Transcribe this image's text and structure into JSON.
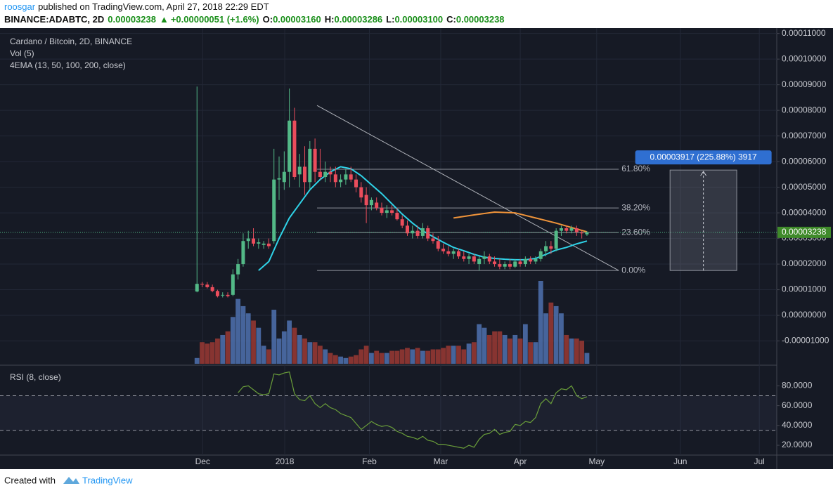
{
  "header": {
    "author": "roosgar",
    "published": "published on TradingView.com, April 27, 2018 22:29 EDT",
    "symbol": "BINANCE:ADABTC, 2D",
    "last": "0.00003238",
    "arrow": "▲",
    "change": "+0.00000051 (+1.6%)",
    "open_label": "O:",
    "open": "0.00003160",
    "high_label": "H:",
    "high": "0.00003286",
    "low_label": "L:",
    "low": "0.00003100",
    "close_label": "C:",
    "close": "0.00003238"
  },
  "chart_data": [
    {
      "type": "candlestick",
      "title": "Cardano / Bitcoin, 2D, BINANCE",
      "volume_title": "Vol (5)",
      "ema_title": "4EMA (13, 50, 100, 200, close)",
      "up_color": "#53b987",
      "down_color": "#eb4d5c",
      "volume_up_color": "#4f72b0",
      "volume_down_color": "#9b3a34",
      "grid": true,
      "candles": [
        [
          9.3e-06,
          8.93e-05,
          9e-06,
          1.23e-05
        ],
        [
          1.23e-05,
          1.3e-05,
          1.1e-05,
          1.2e-05
        ],
        [
          1.2e-05,
          1.3e-05,
          1.05e-05,
          1.1e-05
        ],
        [
          1.1e-05,
          1.2e-05,
          9e-06,
          9.5e-06
        ],
        [
          9.5e-06,
          1e-05,
          7e-06,
          7.5e-06
        ],
        [
          7.8e-06,
          9e-06,
          7e-06,
          8e-06
        ],
        [
          8e-06,
          9e-06,
          7e-06,
          7.5e-06
        ],
        [
          8e-06,
          1.8e-05,
          7.5e-06,
          1.6e-05
        ],
        [
          1.6e-05,
          2.2e-05,
          1.4e-05,
          2e-05
        ],
        [
          2e-05,
          3.2e-05,
          1.9e-05,
          2.9e-05
        ],
        [
          2.9e-05,
          3.3e-05,
          2.6e-05,
          3e-05
        ],
        [
          3e-05,
          3.4e-05,
          2.7e-05,
          2.8e-05
        ],
        [
          2.8e-05,
          3e-05,
          2.6e-05,
          2.85e-05
        ],
        [
          2.75e-05,
          2.9e-05,
          2.6e-05,
          2.8e-05
        ],
        [
          2.8e-05,
          3e-05,
          2.6e-05,
          2.7e-05
        ],
        [
          2.9e-05,
          6.5e-05,
          2.8e-05,
          5.3e-05
        ],
        [
          5.3e-05,
          6.2e-05,
          4.5e-05,
          5.35e-05
        ],
        [
          5.2e-05,
          6.4e-05,
          4.9e-05,
          5.6e-05
        ],
        [
          5.6e-05,
          8.85e-05,
          5e-05,
          7.6e-05
        ],
        [
          7.6e-05,
          8.1e-05,
          5.3e-05,
          5.4e-05
        ],
        [
          5.5e-05,
          6.3e-05,
          5e-05,
          5.8e-05
        ],
        [
          5.8e-05,
          6.6e-05,
          4.7e-05,
          5.2e-05
        ],
        [
          5.2e-05,
          6.8e-05,
          4.9e-05,
          6.5e-05
        ],
        [
          6.5e-05,
          6.9e-05,
          5.2e-05,
          5.6e-05
        ],
        [
          5.6e-05,
          6.5e-05,
          5.3e-05,
          5.4e-05
        ],
        [
          5.4e-05,
          6e-05,
          5.2e-05,
          5.6e-05
        ],
        [
          5.6e-05,
          5.8e-05,
          5.2e-05,
          5.5e-05
        ],
        [
          5.5e-05,
          5.8e-05,
          5e-05,
          5.2e-05
        ],
        [
          5.2e-05,
          5.5e-05,
          5e-05,
          5.3e-05
        ],
        [
          5.3e-05,
          5.7e-05,
          5.1e-05,
          5.5e-05
        ],
        [
          5.5e-05,
          5.8e-05,
          5.2e-05,
          5.3e-05
        ],
        [
          5.3e-05,
          5.5e-05,
          4.8e-05,
          5e-05
        ],
        [
          5e-05,
          5.2e-05,
          4.4e-05,
          4.6e-05
        ],
        [
          4.7e-05,
          5e-05,
          3.6e-05,
          4.3e-05
        ],
        [
          4.3e-05,
          4.6e-05,
          4.1e-05,
          4.5e-05
        ],
        [
          4.4e-05,
          4.6e-05,
          4.1e-05,
          4.2e-05
        ],
        [
          4.2e-05,
          4.4e-05,
          3.9e-05,
          4e-05
        ],
        [
          4e-05,
          4.3e-05,
          3.8e-05,
          4.1e-05
        ],
        [
          4.1e-05,
          4.3e-05,
          3.9e-05,
          4e-05
        ],
        [
          4e-05,
          4.2e-05,
          3.7e-05,
          3.75e-05
        ],
        [
          3.75e-05,
          3.9e-05,
          3.4e-05,
          3.5e-05
        ],
        [
          3.5e-05,
          3.7e-05,
          3.1e-05,
          3.2e-05
        ],
        [
          3.2e-05,
          3.5e-05,
          3e-05,
          3.3e-05
        ],
        [
          3.3e-05,
          3.5e-05,
          3e-05,
          3.1e-05
        ],
        [
          3.1e-05,
          3.6e-05,
          3e-05,
          3.4e-05
        ],
        [
          3.4e-05,
          3.5e-05,
          2.9e-05,
          3e-05
        ],
        [
          3e-05,
          3.2e-05,
          2.8e-05,
          2.9e-05
        ],
        [
          2.9e-05,
          3.1e-05,
          2.5e-05,
          2.6e-05
        ],
        [
          2.6e-05,
          2.8e-05,
          2.4e-05,
          2.5e-05
        ],
        [
          2.5e-05,
          2.7e-05,
          2.3e-05,
          2.4e-05
        ],
        [
          2.4e-05,
          2.6e-05,
          2.2e-05,
          2.5e-05
        ],
        [
          2.5e-05,
          2.6e-05,
          2.2e-05,
          2.3e-05
        ],
        [
          2.3e-05,
          2.5e-05,
          2.1e-05,
          2.2e-05
        ],
        [
          2.2e-05,
          2.4e-05,
          2e-05,
          2.3e-05
        ],
        [
          2.3e-05,
          2.4e-05,
          2e-05,
          2.1e-05
        ],
        [
          2e-05,
          2.3e-05,
          1.75e-05,
          2.2e-05
        ],
        [
          2.2e-05,
          2.5e-05,
          2e-05,
          2.3e-05
        ],
        [
          2.3e-05,
          2.4e-05,
          2e-05,
          2.1e-05
        ],
        [
          2.1e-05,
          2.3e-05,
          1.9e-05,
          2e-05
        ],
        [
          2e-05,
          2.2e-05,
          1.8e-05,
          1.9e-05
        ],
        [
          1.9e-05,
          2.1e-05,
          1.8e-05,
          2e-05
        ],
        [
          2e-05,
          2.2e-05,
          1.8e-05,
          1.9e-05
        ],
        [
          1.9e-05,
          2.2e-05,
          1.85e-05,
          2.1e-05
        ],
        [
          2.1e-05,
          2.2e-05,
          1.9e-05,
          2e-05
        ],
        [
          2e-05,
          2.3e-05,
          1.9e-05,
          2.2e-05
        ],
        [
          2.2e-05,
          2.3e-05,
          2e-05,
          2.1e-05
        ],
        [
          2.1e-05,
          2.3e-05,
          2e-05,
          2.2e-05
        ],
        [
          2.2e-05,
          2.6e-05,
          2.1e-05,
          2.5e-05
        ],
        [
          2.5e-05,
          2.9e-05,
          2.3e-05,
          2.7e-05
        ],
        [
          2.7e-05,
          2.9e-05,
          2.4e-05,
          2.6e-05
        ],
        [
          2.6e-05,
          3.4e-05,
          2.5e-05,
          3.3e-05
        ],
        [
          3.3e-05,
          3.5e-05,
          3.1e-05,
          3.4e-05
        ],
        [
          3.4e-05,
          3.5e-05,
          3.2e-05,
          3.3e-05
        ],
        [
          3.3e-05,
          3.5e-05,
          3.2e-05,
          3.4e-05
        ],
        [
          3.4e-05,
          3.5e-05,
          3.1e-05,
          3.25e-05
        ],
        [
          3.25e-05,
          3.3e-05,
          3e-05,
          3.2e-05
        ],
        [
          3.16e-05,
          3.286e-05,
          3.1e-05,
          3.238e-05
        ]
      ],
      "volume": [
        8,
        30,
        28,
        30,
        35,
        40,
        45,
        65,
        90,
        80,
        70,
        60,
        50,
        25,
        20,
        75,
        35,
        45,
        60,
        50,
        40,
        35,
        30,
        30,
        25,
        20,
        15,
        12,
        10,
        8,
        10,
        12,
        20,
        25,
        15,
        18,
        15,
        15,
        18,
        18,
        20,
        22,
        20,
        22,
        18,
        18,
        20,
        20,
        22,
        25,
        25,
        25,
        20,
        28,
        30,
        55,
        50,
        40,
        45,
        45,
        40,
        35,
        40,
        35,
        55,
        30,
        30,
        115,
        70,
        85,
        80,
        70,
        40,
        35,
        35,
        32,
        15
      ],
      "ema": [
        {
          "color": "#2fd3e8",
          "x": [
            12,
            14,
            16,
            18,
            20,
            22,
            24,
            26,
            28,
            30,
            32,
            34,
            36,
            38,
            40,
            42,
            44,
            46,
            48,
            50,
            52,
            54,
            56,
            58,
            60,
            62,
            64,
            66,
            68,
            70,
            72,
            74,
            76
          ],
          "values": [
            1.75e-05,
            2.1e-05,
            3e-05,
            3.8e-05,
            4.35e-05,
            4.9e-05,
            5.3e-05,
            5.6e-05,
            5.8e-05,
            5.72e-05,
            5.45e-05,
            5.1e-05,
            4.75e-05,
            4.35e-05,
            3.95e-05,
            3.6e-05,
            3.3e-05,
            3.07e-05,
            2.85e-05,
            2.65e-05,
            2.52e-05,
            2.38e-05,
            2.27e-05,
            2.22e-05,
            2.19e-05,
            2.17e-05,
            2.17e-05,
            2.22e-05,
            2.38e-05,
            2.55e-05,
            2.65e-05,
            2.79e-05,
            2.9e-05
          ]
        },
        {
          "color": "#f0943a",
          "x": [
            50,
            54,
            58,
            62,
            66,
            70,
            74,
            76
          ],
          "values": [
            3.8e-05,
            3.92e-05,
            4.03e-05,
            4e-05,
            3.8e-05,
            3.6e-05,
            3.37e-05,
            3.26e-05
          ]
        }
      ],
      "fib": {
        "x": [
          23.4,
          82.2
        ],
        "color": "#8f939c",
        "levels": [
          {
            "value": 5.7e-05,
            "label": "61.80%"
          },
          {
            "value": 4.19e-05,
            "label": "38.20%"
          },
          {
            "value": 3.23e-05,
            "label": "23.60%"
          },
          {
            "value": 1.75e-05,
            "label": "0.00%"
          }
        ]
      },
      "trendline": {
        "x": [
          23.4,
          82.2
        ],
        "y": [
          8.19e-05,
          1.75e-05
        ],
        "color": "#b0b3ba"
      },
      "range_box": {
        "x": [
          92.2,
          105.2
        ],
        "y": [
          1.75e-05,
          5.67e-05
        ],
        "label": "0.00003917 (225.88%) 3917"
      },
      "last_price_label": "0.00003238",
      "xlim": [
        -37.3,
        113.0
      ],
      "xticks": [
        {
          "value": 1.1,
          "label": "Dec"
        },
        {
          "value": 17.1,
          "label": "2018"
        },
        {
          "value": 33.6,
          "label": "Feb"
        },
        {
          "value": 47.5,
          "label": "Mar"
        },
        {
          "value": 63.0,
          "label": "Apr"
        },
        {
          "value": 77.9,
          "label": "May"
        },
        {
          "value": 94.2,
          "label": "Jun"
        },
        {
          "value": 109.6,
          "label": "Jul"
        }
      ],
      "ylim": [
        -1.89e-05,
        0.0001121
      ],
      "yticks": [
        {
          "value": -1e-05,
          "label": "-0.00001000"
        },
        {
          "value": 0,
          "label": "0.00000000"
        },
        {
          "value": 1e-05,
          "label": "0.00001000"
        },
        {
          "value": 2e-05,
          "label": "0.00002000"
        },
        {
          "value": 3e-05,
          "label": "0.00003000"
        },
        {
          "value": 4e-05,
          "label": "0.00004000"
        },
        {
          "value": 5e-05,
          "label": "0.00005000"
        },
        {
          "value": 6e-05,
          "label": "0.00006000"
        },
        {
          "value": 7e-05,
          "label": "0.00007000"
        },
        {
          "value": 8e-05,
          "label": "0.00008000"
        },
        {
          "value": 9e-05,
          "label": "0.00009000"
        },
        {
          "value": 0.0001,
          "label": "0.00010000"
        },
        {
          "value": 0.00011,
          "label": "0.00011000"
        }
      ]
    },
    {
      "type": "line",
      "title": "RSI (8, close)",
      "color": "#6a9e3a",
      "band_color": "#9598a1",
      "values": [
        null,
        null,
        null,
        null,
        null,
        null,
        null,
        null,
        73,
        79,
        80,
        76,
        72,
        71,
        72,
        92,
        91,
        93,
        94,
        72,
        66,
        65,
        70,
        62,
        58,
        62,
        58,
        56,
        52,
        50,
        48,
        42,
        36,
        40,
        44,
        41,
        39,
        40,
        38,
        34,
        32,
        29,
        28,
        26,
        29,
        25,
        24,
        21,
        21,
        20,
        19,
        18,
        17,
        20,
        18,
        26,
        31,
        32,
        36,
        31,
        33,
        34,
        41,
        40,
        44,
        43,
        48,
        62,
        67,
        62,
        73,
        77,
        76,
        80,
        70,
        67,
        69
      ],
      "bands": [
        70,
        35
      ],
      "xlim": [
        -37.3,
        113.0
      ],
      "ylim": [
        10.1,
        99.4
      ],
      "yticks": [
        {
          "value": 20,
          "label": "20.0000"
        },
        {
          "value": 40,
          "label": "40.0000"
        },
        {
          "value": 60,
          "label": "60.0000"
        },
        {
          "value": 80,
          "label": "80.0000"
        }
      ]
    }
  ],
  "footer": {
    "created": "Created with",
    "brand": "TradingView"
  }
}
